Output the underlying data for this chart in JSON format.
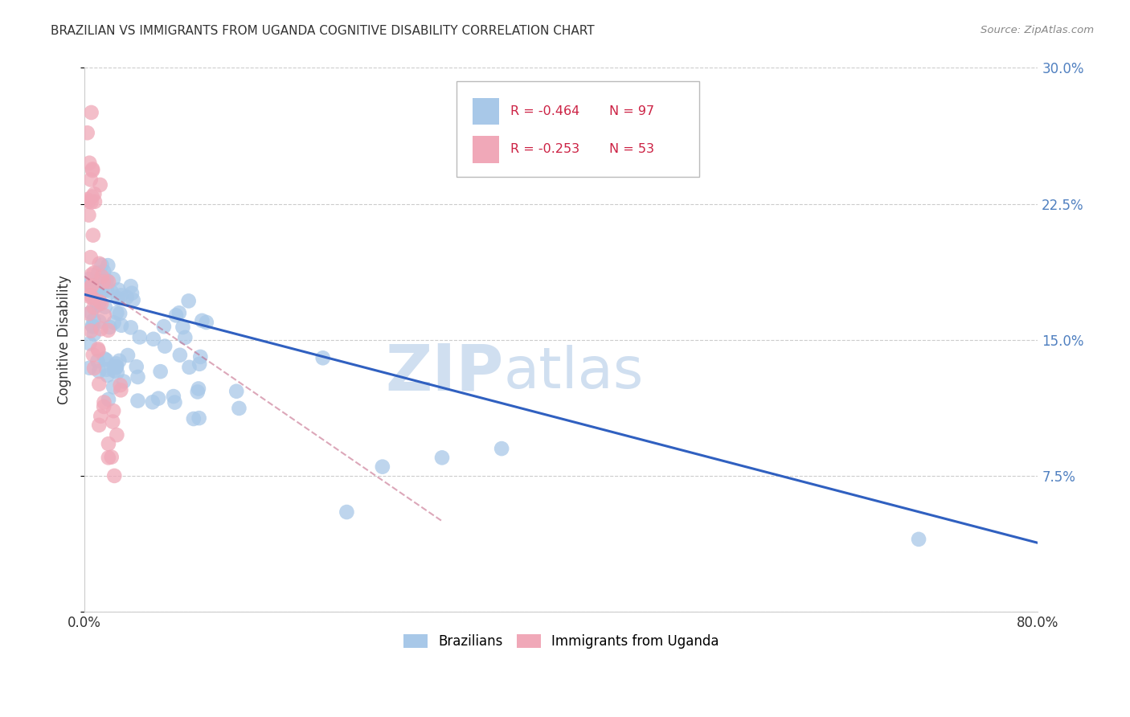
{
  "title": "BRAZILIAN VS IMMIGRANTS FROM UGANDA COGNITIVE DISABILITY CORRELATION CHART",
  "source": "Source: ZipAtlas.com",
  "ylabel": "Cognitive Disability",
  "xlim": [
    0.0,
    0.8
  ],
  "ylim": [
    0.0,
    0.3
  ],
  "blue_color": "#a8c8e8",
  "pink_color": "#f0a8b8",
  "blue_line_color": "#3060c0",
  "pink_line_color": "#c06080",
  "watermark_zip": "ZIP",
  "watermark_atlas": "atlas",
  "watermark_color": "#d0dff0",
  "background_color": "#ffffff",
  "grid_color": "#cccccc",
  "right_axis_color": "#5080c0",
  "title_color": "#333333",
  "source_color": "#888888",
  "legend_r_blue": "R = -0.464",
  "legend_n_blue": "N = 97",
  "legend_r_pink": "R = -0.253",
  "legend_n_pink": "N = 53"
}
